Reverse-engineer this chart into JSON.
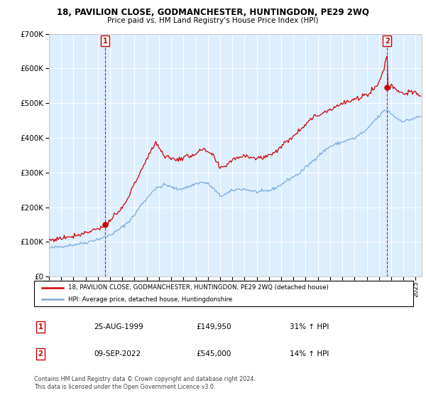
{
  "title": "18, PAVILION CLOSE, GODMANCHESTER, HUNTINGDON, PE29 2WQ",
  "subtitle": "Price paid vs. HM Land Registry's House Price Index (HPI)",
  "legend_line1": "18, PAVILION CLOSE, GODMANCHESTER, HUNTINGDON, PE29 2WQ (detached house)",
  "legend_line2": "HPI: Average price, detached house, Huntingdonshire",
  "sale1_date": "25-AUG-1999",
  "sale1_price": 149950,
  "sale1_hpi": "31% ↑ HPI",
  "sale2_date": "09-SEP-2022",
  "sale2_price": 545000,
  "sale2_hpi": "14% ↑ HPI",
  "footer": "Contains HM Land Registry data © Crown copyright and database right 2024.\nThis data is licensed under the Open Government Licence v3.0.",
  "red_color": "#cc0000",
  "blue_color": "#7aaadd",
  "bg_color": "#ddeeff",
  "grid_color": "#ffffff",
  "ylim": [
    0,
    700000
  ],
  "yticks": [
    0,
    100000,
    200000,
    300000,
    400000,
    500000,
    600000,
    700000
  ],
  "sale1_x": 1999.583,
  "sale2_x": 2022.667,
  "xmin": 1995.0,
  "xmax": 2025.5
}
